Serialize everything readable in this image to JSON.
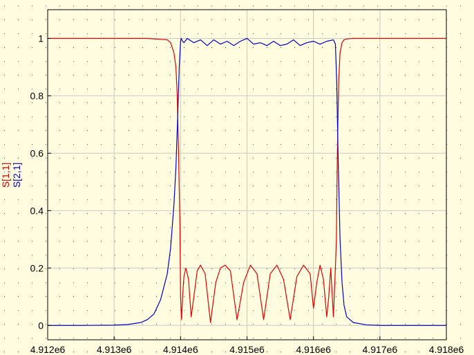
{
  "chart_data": {
    "type": "line",
    "title": "",
    "xlabel": "",
    "xlim": [
      4912000.0,
      4918000.0
    ],
    "ylim": [
      -0.05,
      1.1
    ],
    "x_ticks": [
      4912000.0,
      4913000.0,
      4914000.0,
      4915000.0,
      4916000.0,
      4917000.0,
      4918000.0
    ],
    "x_tick_labels": [
      "4.912e6",
      "4.913e6",
      "4.914e6",
      "4.915e6",
      "4.916e6",
      "4.917e6",
      "4.918e6"
    ],
    "y_ticks": [
      0,
      0.2,
      0.4,
      0.6,
      0.8,
      1
    ],
    "y_tick_labels": [
      "0",
      "0.2",
      "0.4",
      "0.6",
      "0.8",
      "1"
    ],
    "grid": true,
    "colors": {
      "background": "#fffcdf",
      "grid": "#c8c8c8",
      "dots": "#555555"
    },
    "series": [
      {
        "name": "S[1,1]",
        "color": "#dd0000",
        "x": [
          4912000.0,
          4913500.0,
          4913800.0,
          4913850.0,
          4913900.0,
          4913930.0,
          4913950.0,
          4913970.0,
          4913990.0,
          4914000.0,
          4914015.0,
          4914030.0,
          4914050.0,
          4914080.0,
          4914120.0,
          4914160.0,
          4914200.0,
          4914250.0,
          4914300.0,
          4914370.0,
          4914450.0,
          4914530.0,
          4914600.0,
          4914670.0,
          4914750.0,
          4914850.0,
          4914950.0,
          4915050.0,
          4915150.0,
          4915250.0,
          4915350.0,
          4915450.0,
          4915550.0,
          4915650.0,
          4915750.0,
          4915850.0,
          4915950.0,
          4916000.0,
          4916050.0,
          4916100.0,
          4916150.0,
          4916200.0,
          4916230.0,
          4916260.0,
          4916300.0,
          4916330.0,
          4916345.0,
          4916360.0,
          4916380.0,
          4916400.0,
          4916430.0,
          4916460.0,
          4916500.0,
          4916600.0,
          4918000.0
        ],
        "y": [
          1,
          1,
          0.995,
          0.985,
          0.95,
          0.9,
          0.8,
          0.6,
          0.35,
          0.1,
          0.02,
          0.1,
          0.17,
          0.2,
          0.16,
          0.03,
          0.1,
          0.19,
          0.21,
          0.18,
          0.01,
          0.15,
          0.2,
          0.21,
          0.19,
          0.02,
          0.15,
          0.21,
          0.18,
          0.02,
          0.18,
          0.21,
          0.16,
          0.02,
          0.17,
          0.21,
          0.18,
          0.06,
          0.15,
          0.21,
          0.16,
          0.03,
          0.1,
          0.2,
          0.03,
          0.2,
          0.3,
          0.6,
          0.85,
          0.95,
          0.985,
          0.995,
          0.998,
          1,
          1
        ]
      },
      {
        "name": "S[2,1]",
        "color": "#0000cc",
        "x": [
          4912000.0,
          4912500.0,
          4913000.0,
          4913200.0,
          4913400.0,
          4913500.0,
          4913600.0,
          4913700.0,
          4913800.0,
          4913850.0,
          4913900.0,
          4913930.0,
          4913960.0,
          4913980.0,
          4914000.0,
          4914010.0,
          4914030.0,
          4914050.0,
          4914100.0,
          4914200.0,
          4914300.0,
          4914400.0,
          4914500.0,
          4914600.0,
          4914700.0,
          4914800.0,
          4914900.0,
          4915000.0,
          4915100.0,
          4915200.0,
          4915300.0,
          4915400.0,
          4915500.0,
          4915600.0,
          4915700.0,
          4915800.0,
          4915900.0,
          4916000.0,
          4916100.0,
          4916200.0,
          4916300.0,
          4916330.0,
          4916350.0,
          4916370.0,
          4916400.0,
          4916430.0,
          4916460.0,
          4916500.0,
          4916600.0,
          4916800.0,
          4917000.0,
          4918000.0
        ],
        "y": [
          0,
          0,
          0.001,
          0.003,
          0.01,
          0.02,
          0.04,
          0.09,
          0.18,
          0.27,
          0.42,
          0.55,
          0.75,
          0.9,
          0.99,
          1,
          0.99,
          0.985,
          1,
          0.985,
          0.995,
          0.975,
          0.995,
          0.98,
          0.99,
          0.975,
          0.99,
          1,
          0.98,
          0.985,
          0.975,
          0.99,
          0.975,
          0.98,
          0.995,
          0.975,
          0.985,
          0.99,
          0.98,
          0.99,
          0.995,
          0.98,
          0.85,
          0.6,
          0.3,
          0.15,
          0.07,
          0.03,
          0.01,
          0.002,
          0,
          0
        ]
      }
    ]
  }
}
